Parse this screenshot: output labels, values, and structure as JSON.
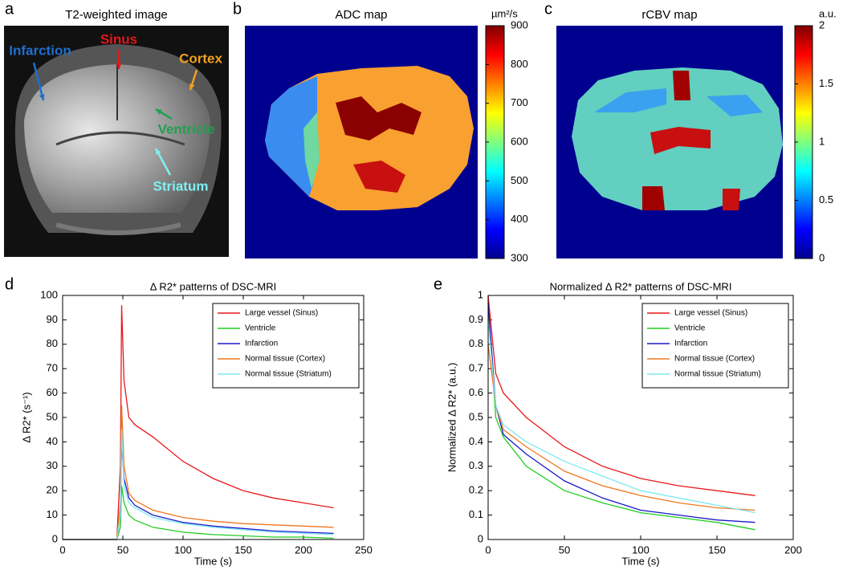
{
  "images": [
    {
      "letter": "a",
      "title": "T2-weighted image",
      "annotations": [
        {
          "text": "Infarction",
          "color": "#1e6fd0"
        },
        {
          "text": "Sinus",
          "color": "#e01818"
        },
        {
          "text": "Cortex",
          "color": "#f0a020"
        },
        {
          "text": "Ventricle",
          "color": "#20a050"
        },
        {
          "text": "Striatum",
          "color": "#80f0f0"
        }
      ]
    },
    {
      "letter": "b",
      "title": "ADC map",
      "colorbar": {
        "label": "µm²/s",
        "lim": [
          300,
          900
        ],
        "ticks": [
          300,
          400,
          500,
          600,
          700,
          800,
          900
        ]
      }
    },
    {
      "letter": "c",
      "title": "rCBV map",
      "colorbar": {
        "label": "a.u.",
        "lim": [
          0,
          2
        ],
        "ticks": [
          0,
          0.5,
          1,
          1.5,
          2
        ]
      }
    }
  ],
  "chart_data": [
    {
      "type": "line",
      "letter": "d",
      "title": "Δ R2* patterns of DSC-MRI",
      "xlabel": "Time (s)",
      "ylabel": "Δ R2* (s⁻¹)",
      "x": [
        0,
        25,
        45,
        48,
        49,
        51,
        55,
        60,
        75,
        100,
        125,
        150,
        175,
        200,
        225
      ],
      "series": [
        {
          "name": "Large vessel (Sinus)",
          "color": "#e8191c",
          "values": [
            0,
            0,
            0,
            30,
            96,
            65,
            50,
            47,
            42,
            32,
            25,
            20,
            17,
            15,
            13
          ]
        },
        {
          "name": "Ventricle",
          "color": "#22cc22",
          "values": [
            0,
            0,
            0,
            5,
            22,
            15,
            10,
            8,
            5,
            3,
            2,
            1.5,
            1,
            1,
            0.5
          ]
        },
        {
          "name": "Infarction",
          "color": "#1a1acc",
          "values": [
            0,
            0,
            0,
            10,
            40,
            25,
            17,
            14,
            10,
            7,
            5.5,
            4.5,
            3.5,
            3,
            2.5
          ]
        },
        {
          "name": "Normal tissue (Cortex)",
          "color": "#f07820",
          "values": [
            0,
            0,
            0,
            15,
            55,
            30,
            19,
            16,
            12,
            9,
            7.5,
            6.5,
            6,
            5.5,
            5
          ]
        },
        {
          "name": "Normal tissue (Striatum)",
          "color": "#80e8f0",
          "values": [
            0,
            0,
            0,
            10,
            45,
            22,
            15,
            13,
            9,
            6.5,
            5,
            4,
            3,
            2.5,
            2
          ]
        }
      ],
      "xlim": [
        0,
        250
      ],
      "xticks": [
        0,
        50,
        100,
        150,
        200,
        250
      ],
      "ylim": [
        0,
        100
      ],
      "yticks": [
        0,
        10,
        20,
        30,
        40,
        50,
        60,
        70,
        80,
        90,
        100
      ],
      "legend": "northeast"
    },
    {
      "type": "line",
      "letter": "e",
      "title": "Normalized  Δ R2* patterns of DSC-MRI",
      "xlabel": "Time (s)",
      "ylabel": "Normalized  Δ R2* (a.u.)",
      "x": [
        0,
        5,
        10,
        25,
        50,
        75,
        100,
        125,
        150,
        175
      ],
      "series": [
        {
          "name": "Large vessel (Sinus)",
          "color": "#e8191c",
          "values": [
            1,
            0.68,
            0.6,
            0.5,
            0.38,
            0.3,
            0.25,
            0.22,
            0.2,
            0.18
          ]
        },
        {
          "name": "Ventricle",
          "color": "#22cc22",
          "values": [
            0.95,
            0.5,
            0.42,
            0.3,
            0.2,
            0.15,
            0.11,
            0.09,
            0.07,
            0.04
          ]
        },
        {
          "name": "Infarction",
          "color": "#1a1acc",
          "values": [
            0.97,
            0.55,
            0.43,
            0.35,
            0.24,
            0.17,
            0.12,
            0.1,
            0.08,
            0.07
          ]
        },
        {
          "name": "Normal tissue (Cortex)",
          "color": "#f07820",
          "values": [
            0.8,
            0.55,
            0.45,
            0.38,
            0.28,
            0.22,
            0.18,
            0.15,
            0.13,
            0.12
          ]
        },
        {
          "name": "Normal tissue (Striatum)",
          "color": "#80e8f0",
          "values": [
            0.9,
            0.55,
            0.47,
            0.4,
            0.32,
            0.26,
            0.2,
            0.17,
            0.14,
            0.11
          ]
        }
      ],
      "xlim": [
        0,
        200
      ],
      "xticks": [
        0,
        50,
        100,
        150,
        200
      ],
      "ylim": [
        0,
        1
      ],
      "yticks": [
        0,
        0.1,
        0.2,
        0.3,
        0.4,
        0.5,
        0.6,
        0.7,
        0.8,
        0.9,
        1
      ],
      "legend": "northeast"
    }
  ]
}
